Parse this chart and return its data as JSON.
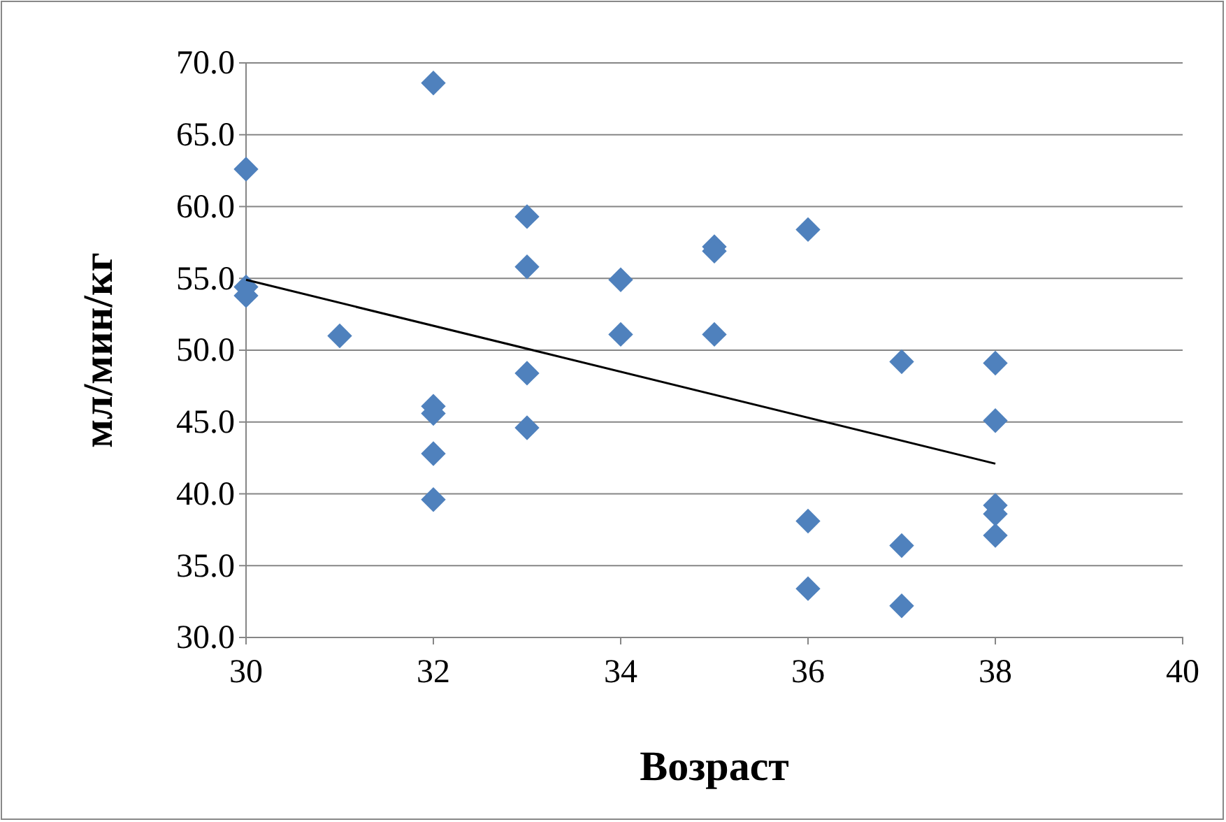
{
  "chart_data": {
    "type": "scatter",
    "xlabel": "Возраст",
    "ylabel": "мл/мин/кг",
    "xlim": [
      30,
      40
    ],
    "xticks": [
      30,
      32,
      34,
      36,
      38,
      40
    ],
    "ylim": [
      30,
      70
    ],
    "yticks": [
      {
        "value": 30,
        "label": "30.0"
      },
      {
        "value": 35,
        "label": "35.0"
      },
      {
        "value": 40,
        "label": "40.0"
      },
      {
        "value": 45,
        "label": "45.0"
      },
      {
        "value": 50,
        "label": "50.0"
      },
      {
        "value": 55,
        "label": "55.0"
      },
      {
        "value": 60,
        "label": "60.0"
      },
      {
        "value": 65,
        "label": "65.0"
      },
      {
        "value": 70,
        "label": "70.0"
      }
    ],
    "grid": "y",
    "marker": "diamond",
    "series": [
      {
        "color": "#4f81bd",
        "x": [
          30,
          30,
          30,
          31,
          32,
          32,
          32,
          32,
          32,
          33,
          33,
          33,
          33,
          34,
          34,
          35,
          35,
          35,
          36,
          36,
          36,
          37,
          37,
          37,
          38,
          38,
          38,
          38,
          38
        ],
        "values": [
          62.6,
          54.4,
          53.8,
          51.0,
          68.6,
          46.1,
          45.6,
          42.8,
          39.6,
          59.3,
          55.8,
          48.4,
          44.6,
          54.9,
          51.1,
          57.2,
          56.9,
          51.1,
          58.4,
          38.1,
          33.4,
          49.2,
          36.4,
          32.2,
          49.1,
          45.1,
          39.2,
          38.6,
          37.1
        ]
      },
      {
        "type": "line",
        "color": "#000000",
        "x": [
          30,
          38
        ],
        "values": [
          54.9,
          42.1
        ],
        "marker": "none",
        "line_style": "solid"
      }
    ]
  }
}
